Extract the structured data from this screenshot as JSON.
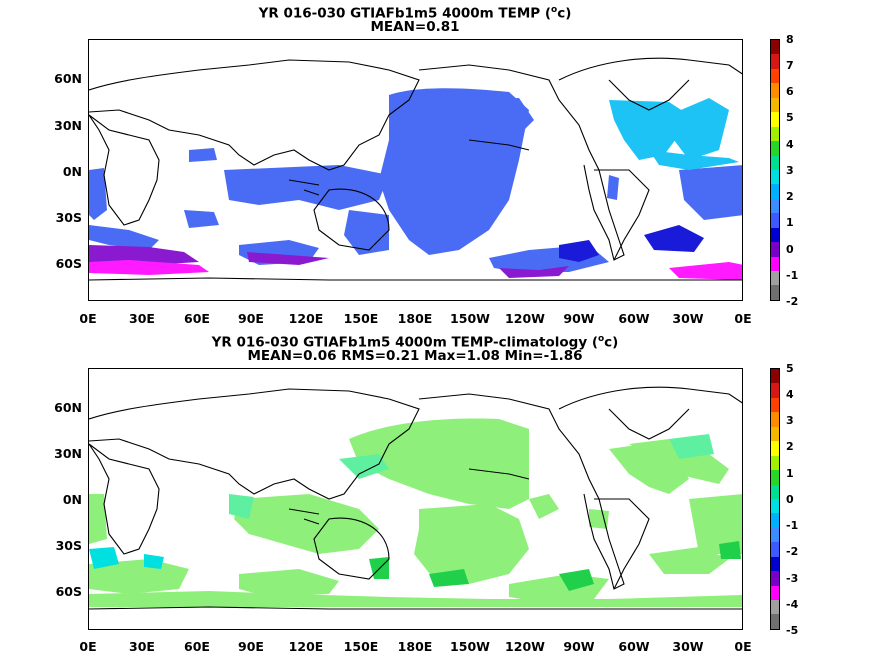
{
  "panels": [
    {
      "title_main": "YR 016-030 GTIAFb1m5 4000m TEMP (",
      "title_unit_sup": "o",
      "title_unit_end": "c)",
      "subtitle": "MEAN=0.81",
      "lat_labels": [
        "60N",
        "30N",
        "0N",
        "30S",
        "60S"
      ],
      "lon_labels": [
        "0E",
        "30E",
        "60E",
        "90E",
        "120E",
        "150E",
        "180E",
        "150W",
        "120W",
        "90W",
        "60W",
        "30W",
        "0E"
      ],
      "colorbar_ticks": [
        "8",
        "7",
        "6",
        "5",
        "4",
        "3",
        "2",
        "1",
        "0",
        "-1",
        "-2"
      ]
    },
    {
      "title_main": "YR 016-030 GTIAFb1m5 4000m TEMP-climatology (",
      "title_unit_sup": "o",
      "title_unit_end": "c)",
      "subtitle": "MEAN=0.06   RMS=0.21   Max=1.08   Min=-1.86",
      "lat_labels": [
        "60N",
        "30N",
        "0N",
        "30S",
        "60S"
      ],
      "lon_labels": [
        "0E",
        "30E",
        "60E",
        "90E",
        "120E",
        "150E",
        "180E",
        "150W",
        "120W",
        "90W",
        "60W",
        "30W",
        "0E"
      ],
      "colorbar_ticks": [
        "5",
        "4",
        "3",
        "2",
        "1",
        "0",
        "-1",
        "-2",
        "-3",
        "-4",
        "-5"
      ]
    }
  ],
  "colorbar_colors": [
    "#8b0000",
    "#d71616",
    "#ff4000",
    "#ff8c00",
    "#f5b800",
    "#ffff00",
    "#a0f000",
    "#27d627",
    "#00e090",
    "#00e0e0",
    "#00b0ff",
    "#3c8cff",
    "#3c5aff",
    "#0000d0",
    "#7800c8",
    "#ff00ff",
    "#a0a0a0",
    "#707070"
  ],
  "field_colors": {
    "land": "#ffffff",
    "panel1_main": "#4a6cf5",
    "panel1_light": "#1ec3f5",
    "panel1_dark": "#1a1ad9",
    "panel1_purple": "#8a1ad0",
    "panel1_magenta": "#ff1aff",
    "panel2_main": "#8ef07a",
    "panel2_light": "#5ef0a0",
    "panel2_dark": "#20d04a",
    "panel2_cyan": "#00e0e0"
  }
}
